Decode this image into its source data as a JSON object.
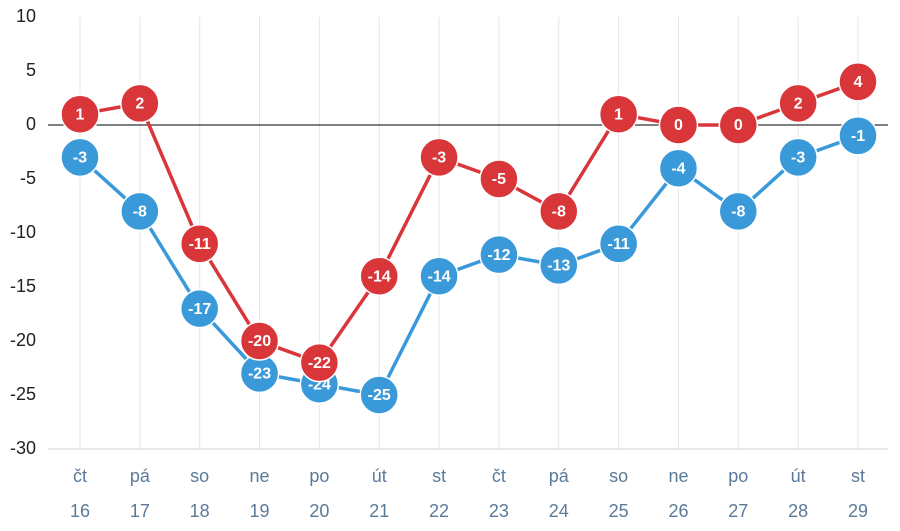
{
  "chart_data": {
    "type": "line",
    "categories": [
      [
        "čt",
        "16"
      ],
      [
        "pá",
        "17"
      ],
      [
        "so",
        "18"
      ],
      [
        "ne",
        "19"
      ],
      [
        "po",
        "20"
      ],
      [
        "út",
        "21"
      ],
      [
        "st",
        "22"
      ],
      [
        "čt",
        "23"
      ],
      [
        "pá",
        "24"
      ],
      [
        "so",
        "25"
      ],
      [
        "ne",
        "26"
      ],
      [
        "po",
        "27"
      ],
      [
        "út",
        "28"
      ],
      [
        "st",
        "29"
      ]
    ],
    "series": [
      {
        "color": "#3a9ad9",
        "values": [
          -3,
          -8,
          -17,
          -23,
          -24,
          -25,
          -14,
          -12,
          -13,
          -11,
          -4,
          -8,
          -3,
          -1
        ]
      },
      {
        "color": "#d9363a",
        "values": [
          1,
          2,
          -11,
          -20,
          -22,
          -14,
          -3,
          -5,
          -8,
          1,
          0,
          0,
          2,
          4
        ]
      }
    ],
    "ylim": [
      -30,
      10
    ],
    "yticks": [
      -30,
      -25,
      -20,
      -15,
      -10,
      -5,
      0,
      5,
      10
    ],
    "grid": true
  }
}
